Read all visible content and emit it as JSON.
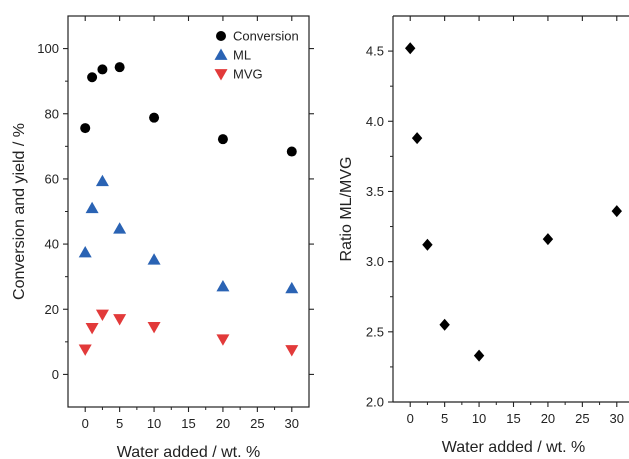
{
  "chart_data": [
    {
      "type": "scatter",
      "title": "",
      "xlabel": "Water added / wt. %",
      "ylabel": "Conversion and yield / %",
      "xlim": [
        -2.5,
        32.5
      ],
      "ylim": [
        -10,
        110
      ],
      "xticks": [
        0,
        5,
        10,
        15,
        20,
        25,
        30
      ],
      "yticks": [
        0,
        20,
        40,
        60,
        80,
        100
      ],
      "grid": false,
      "legend_position": "top-right",
      "series": [
        {
          "name": "Conversion",
          "marker": "circle",
          "color": "#000000",
          "x": [
            0,
            1,
            2.5,
            5,
            10,
            20,
            30
          ],
          "y": [
            75.6,
            91.2,
            93.6,
            94.3,
            78.8,
            72.2,
            68.4
          ]
        },
        {
          "name": "ML",
          "marker": "triangle-up",
          "color": "#2a63b4",
          "x": [
            0,
            1,
            2.5,
            5,
            10,
            20,
            30
          ],
          "y": [
            37.4,
            51.0,
            59.3,
            44.7,
            35.2,
            27.0,
            26.4
          ]
        },
        {
          "name": "MVG",
          "marker": "triangle-down",
          "color": "#e23a3a",
          "x": [
            0,
            1,
            2.5,
            5,
            10,
            20,
            30
          ],
          "y": [
            7.7,
            14.3,
            18.4,
            17.0,
            14.6,
            10.8,
            7.5
          ]
        }
      ]
    },
    {
      "type": "scatter",
      "title": "",
      "xlabel": "Water added / wt. %",
      "ylabel": "Ratio ML/MVG",
      "xlim": [
        -2.5,
        32.5
      ],
      "ylim": [
        2.0,
        4.75
      ],
      "xticks": [
        0,
        5,
        10,
        15,
        20,
        25,
        30
      ],
      "yticks": [
        2.0,
        2.5,
        3.0,
        3.5,
        4.0,
        4.5
      ],
      "ytick_labels": [
        "2.0",
        "2.5",
        "3.0",
        "3.5",
        "4.0",
        "4.5"
      ],
      "grid": false,
      "series": [
        {
          "marker": "diamond",
          "color": "#000000",
          "x": [
            0,
            1,
            2.5,
            5,
            10,
            20,
            30
          ],
          "y": [
            4.52,
            3.88,
            3.12,
            2.55,
            2.33,
            3.16,
            3.36
          ]
        }
      ]
    }
  ]
}
